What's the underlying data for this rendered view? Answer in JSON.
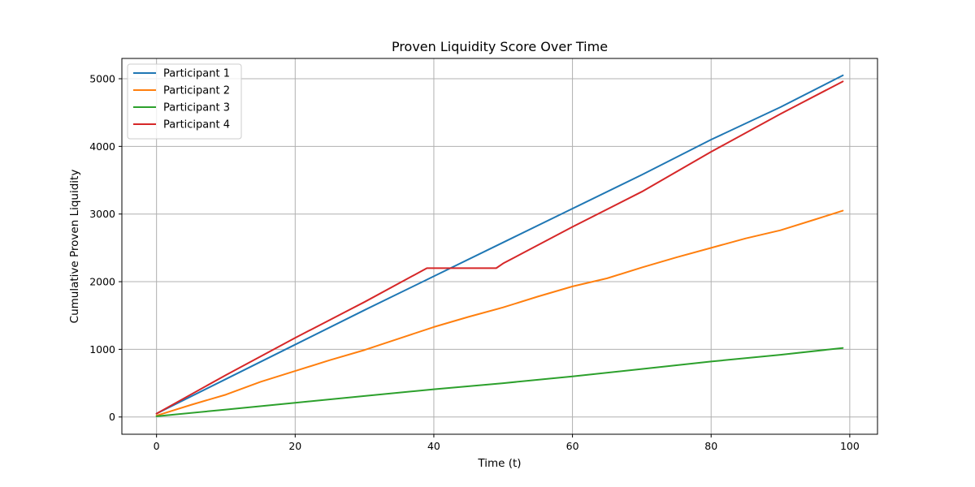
{
  "chart_data": {
    "type": "line",
    "title": "Proven Liquidity Score Over Time",
    "xlabel": "Time (t)",
    "ylabel": "Cumulative Proven Liquidity",
    "xlim": [
      -5,
      104
    ],
    "ylim": [
      -255,
      5300
    ],
    "xticks": [
      0,
      20,
      40,
      60,
      80,
      100
    ],
    "yticks": [
      0,
      1000,
      2000,
      3000,
      4000,
      5000
    ],
    "grid": true,
    "legend_position": "top-left",
    "series": [
      {
        "name": "Participant 1",
        "color": "#1f77b4",
        "x": [
          0,
          10,
          20,
          30,
          40,
          50,
          60,
          70,
          80,
          90,
          99
        ],
        "y": [
          50,
          560,
          1070,
          1580,
          2080,
          2580,
          3080,
          3580,
          4100,
          4580,
          5050
        ]
      },
      {
        "name": "Participant 2",
        "color": "#ff7f0e",
        "x": [
          0,
          5,
          10,
          15,
          20,
          25,
          30,
          35,
          40,
          45,
          50,
          55,
          60,
          65,
          70,
          75,
          80,
          85,
          90,
          95,
          99
        ],
        "y": [
          20,
          180,
          330,
          520,
          680,
          840,
          990,
          1160,
          1330,
          1480,
          1620,
          1780,
          1930,
          2050,
          2210,
          2360,
          2500,
          2640,
          2760,
          2920,
          3050
        ]
      },
      {
        "name": "Participant 3",
        "color": "#2ca02c",
        "x": [
          0,
          10,
          20,
          30,
          40,
          50,
          60,
          70,
          80,
          90,
          99
        ],
        "y": [
          10,
          110,
          210,
          310,
          410,
          500,
          600,
          710,
          820,
          920,
          1020
        ]
      },
      {
        "name": "Participant 4",
        "color": "#d62728",
        "x": [
          0,
          10,
          20,
          30,
          39,
          49,
          50,
          60,
          70,
          80,
          90,
          99
        ],
        "y": [
          50,
          620,
          1170,
          1700,
          2200,
          2200,
          2270,
          2810,
          3330,
          3920,
          4480,
          4960
        ]
      }
    ]
  }
}
